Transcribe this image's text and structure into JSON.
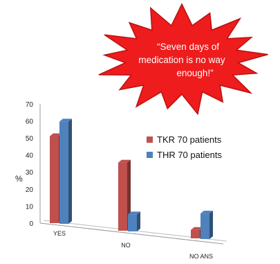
{
  "callout": {
    "lines": [
      "“Seven days of",
      "medication is no way",
      "enough!”"
    ],
    "fill": "#ee1c1c",
    "stroke": "#bb1010"
  },
  "chart_data": {
    "type": "bar",
    "categories": [
      "YES",
      "NO",
      "NO ANS"
    ],
    "series": [
      {
        "name": "TKR 70 patients",
        "values": [
          51,
          40,
          5
        ],
        "color": "#c0504d"
      },
      {
        "name": "THR 70 patients",
        "values": [
          60,
          10,
          15
        ],
        "color": "#4f81bd"
      }
    ],
    "ylabel": "%",
    "ylim": [
      0,
      70
    ],
    "yticks": [
      0,
      10,
      20,
      30,
      40,
      50,
      60,
      70
    ],
    "legend_position": "right",
    "grid": false,
    "style": "3d-column"
  }
}
